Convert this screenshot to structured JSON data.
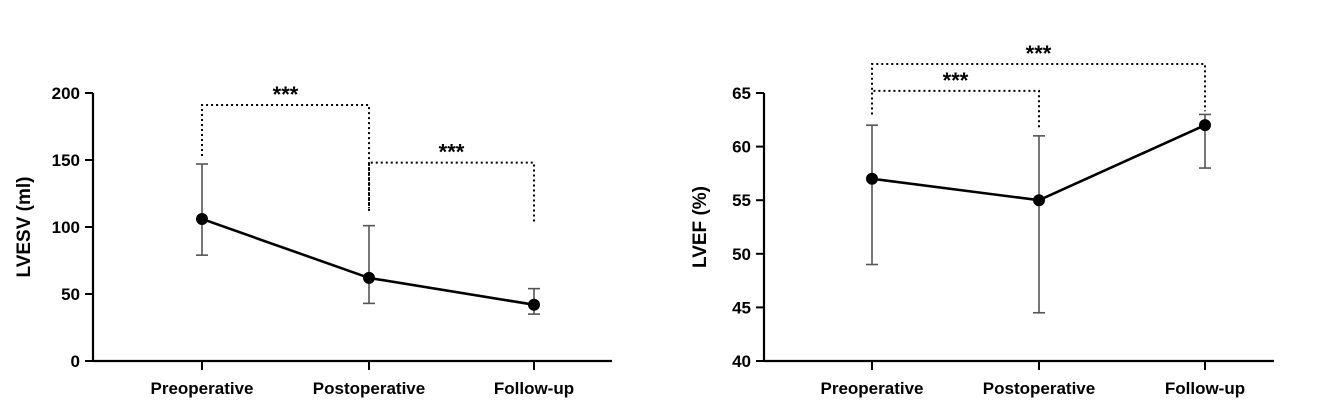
{
  "chart_data": [
    {
      "type": "line",
      "ylabel": "LVESV (ml)",
      "xlabel": "",
      "categories": [
        "Preoperative",
        "Postoperative",
        "Follow-up"
      ],
      "values": [
        106,
        62,
        42
      ],
      "error_low": [
        79,
        43,
        35
      ],
      "error_high": [
        147,
        101,
        54
      ],
      "ylim": [
        0,
        200
      ],
      "yticks": [
        "0",
        "50",
        "100",
        "150",
        "200"
      ],
      "yticks_values": [
        0,
        50,
        100,
        150,
        200
      ],
      "grid": false,
      "color": "#000000",
      "annotations": [
        {
          "from": 0,
          "to": 1,
          "label": "***",
          "level": 1,
          "from_value": 153,
          "to_value": 114,
          "bar_value": 191
        },
        {
          "from": 1,
          "to": 2,
          "label": "***",
          "level": 2,
          "from_value": 112,
          "to_value": 104,
          "bar_value": 148
        }
      ]
    },
    {
      "type": "line",
      "ylabel": "LVEF (%)",
      "xlabel": "",
      "categories": [
        "Preoperative",
        "Postoperative",
        "Follow-up"
      ],
      "values": [
        57,
        55,
        62
      ],
      "error_low": [
        49,
        44.5,
        58
      ],
      "error_high": [
        62,
        61,
        63
      ],
      "ylim": [
        40,
        65
      ],
      "yticks": [
        "40",
        "45",
        "50",
        "55",
        "60",
        "65"
      ],
      "yticks_values": [
        40,
        45,
        50,
        55,
        60,
        65
      ],
      "grid": false,
      "color": "#000000",
      "annotations": [
        {
          "from": 0,
          "to": 1,
          "label": "***",
          "level": 1,
          "from_value": 63,
          "to_value": 61.7,
          "bar_value": 65.2
        },
        {
          "from": 0,
          "to": 2,
          "label": "***",
          "level": 2,
          "from_value": 65.3,
          "to_value": 63.3,
          "bar_value": 67.7
        }
      ]
    }
  ]
}
